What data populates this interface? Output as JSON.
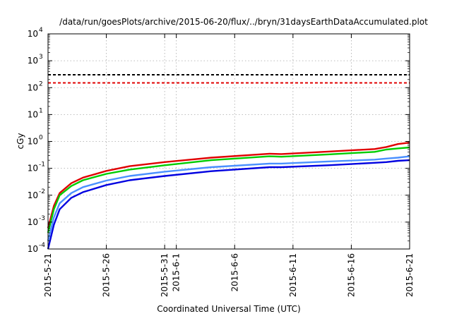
{
  "chart_data": {
    "type": "line",
    "title": "/data/run/goesPlots/archive/2015-06-20/flux/../bryn/31daysEarthDataAccumulated.plot",
    "xlabel": "Coordinated Universal Time (UTC)",
    "ylabel": "cGy",
    "yscale": "log",
    "ylim": [
      0.0001,
      10000
    ],
    "xlim": [
      "2015-05-21",
      "2015-06-21"
    ],
    "grid": true,
    "legend": "none",
    "y_ticks": [
      {
        "value": 0.0001,
        "base": "10",
        "exp": "-4"
      },
      {
        "value": 0.001,
        "base": "10",
        "exp": "-3"
      },
      {
        "value": 0.01,
        "base": "10",
        "exp": "-2"
      },
      {
        "value": 0.1,
        "base": "10",
        "exp": "-1"
      },
      {
        "value": 1,
        "base": "10",
        "exp": "0"
      },
      {
        "value": 10,
        "base": "10",
        "exp": "1"
      },
      {
        "value": 100,
        "base": "10",
        "exp": "2"
      },
      {
        "value": 1000,
        "base": "10",
        "exp": "3"
      },
      {
        "value": 10000,
        "base": "10",
        "exp": "4"
      }
    ],
    "x_ticks": [
      "2015-5-21",
      "2015-5-26",
      "2015-5-31",
      "2015-6-1",
      "2015-6-6",
      "2015-6-11",
      "2015-6-16",
      "2015-6-21"
    ],
    "reference_lines": [
      {
        "y": 300,
        "color": "#000000"
      },
      {
        "y": 150,
        "color": "#e00000"
      }
    ],
    "series": [
      {
        "color": "#e00000",
        "x": [
          "2015-05-21",
          "2015-05-21T12:00",
          "2015-05-22",
          "2015-05-23",
          "2015-05-24",
          "2015-05-26",
          "2015-05-28",
          "2015-05-31",
          "2015-06-04",
          "2015-06-09",
          "2015-06-10",
          "2015-06-14",
          "2015-06-18",
          "2015-06-19",
          "2015-06-20",
          "2015-06-21"
        ],
        "y": [
          0.0006,
          0.004,
          0.012,
          0.028,
          0.045,
          0.08,
          0.12,
          0.17,
          0.25,
          0.35,
          0.34,
          0.42,
          0.52,
          0.62,
          0.8,
          0.9
        ]
      },
      {
        "color": "#00cc00",
        "x": [
          "2015-05-21",
          "2015-05-21T12:00",
          "2015-05-22",
          "2015-05-23",
          "2015-05-24",
          "2015-05-26",
          "2015-05-28",
          "2015-05-31",
          "2015-06-04",
          "2015-06-09",
          "2015-06-10",
          "2015-06-14",
          "2015-06-18",
          "2015-06-19",
          "2015-06-20",
          "2015-06-21"
        ],
        "y": [
          0.0004,
          0.003,
          0.01,
          0.022,
          0.036,
          0.062,
          0.09,
          0.13,
          0.2,
          0.28,
          0.27,
          0.33,
          0.41,
          0.5,
          0.55,
          0.6
        ]
      },
      {
        "color": "#4a90ff",
        "x": [
          "2015-05-21",
          "2015-05-21T12:00",
          "2015-05-22",
          "2015-05-23",
          "2015-05-24",
          "2015-05-26",
          "2015-05-28",
          "2015-05-31",
          "2015-06-04",
          "2015-06-09",
          "2015-06-10",
          "2015-06-14",
          "2015-06-18",
          "2015-06-19",
          "2015-06-20",
          "2015-06-21"
        ],
        "y": [
          0.0002,
          0.0015,
          0.005,
          0.012,
          0.02,
          0.035,
          0.052,
          0.075,
          0.11,
          0.15,
          0.15,
          0.18,
          0.21,
          0.23,
          0.25,
          0.28
        ]
      },
      {
        "color": "#0000e0",
        "x": [
          "2015-05-21",
          "2015-05-21T12:00",
          "2015-05-22",
          "2015-05-23",
          "2015-05-24",
          "2015-05-26",
          "2015-05-28",
          "2015-05-31",
          "2015-06-04",
          "2015-06-09",
          "2015-06-10",
          "2015-06-14",
          "2015-06-18",
          "2015-06-19",
          "2015-06-20",
          "2015-06-21"
        ],
        "y": [
          0.0001,
          0.0008,
          0.003,
          0.008,
          0.013,
          0.024,
          0.036,
          0.052,
          0.078,
          0.11,
          0.11,
          0.13,
          0.16,
          0.17,
          0.19,
          0.2
        ]
      }
    ]
  }
}
